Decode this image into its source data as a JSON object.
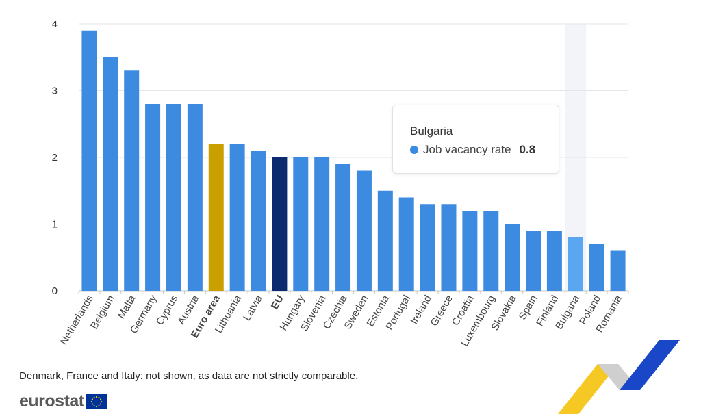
{
  "chart_data": {
    "type": "bar",
    "categories": [
      "Netherlands",
      "Belgium",
      "Malta",
      "Germany",
      "Cyprus",
      "Austria",
      "Euro area",
      "Lithuania",
      "Latvia",
      "EU",
      "Hungary",
      "Slovenia",
      "Czechia",
      "Sweden",
      "Estonia",
      "Portugal",
      "Ireland",
      "Greece",
      "Croatia",
      "Luxembourg",
      "Slovakia",
      "Spain",
      "Finland",
      "Bulgaria",
      "Poland",
      "Romania"
    ],
    "values": [
      3.9,
      3.5,
      3.3,
      2.8,
      2.8,
      2.8,
      2.2,
      2.2,
      2.1,
      2.0,
      2.0,
      2.0,
      1.9,
      1.8,
      1.5,
      1.4,
      1.3,
      1.3,
      1.2,
      1.2,
      1.0,
      0.9,
      0.9,
      0.8,
      0.7,
      0.6
    ],
    "series_name": "Job vacancy rate",
    "bold_categories": [
      "Euro area",
      "EU"
    ],
    "highlighted_category": "Bulgaria",
    "ylim": [
      0,
      4
    ],
    "yticks": [
      0,
      1,
      2,
      3,
      4
    ],
    "grid": true,
    "colors": {
      "default": "#3d8be0",
      "Euro area": "#c9a000",
      "EU": "#0c2a6e",
      "highlight": "#5ba6f0",
      "hover_band": "#f2f4fa",
      "grid": "#e6e6e6",
      "axis": "#c8c8c8"
    }
  },
  "tooltip": {
    "title": "Bulgaria",
    "label": "Job vacancy rate",
    "value": "0.8"
  },
  "footnote": "Denmark, France and Italy: not shown, as data are not strictly comparable.",
  "brand": {
    "name": "eurostat",
    "flag_color": "#003399",
    "star_color": "#ffcc00"
  },
  "decoration": {
    "colors": [
      "#f5c518",
      "#c8c8c8",
      "#1a47c8"
    ]
  }
}
